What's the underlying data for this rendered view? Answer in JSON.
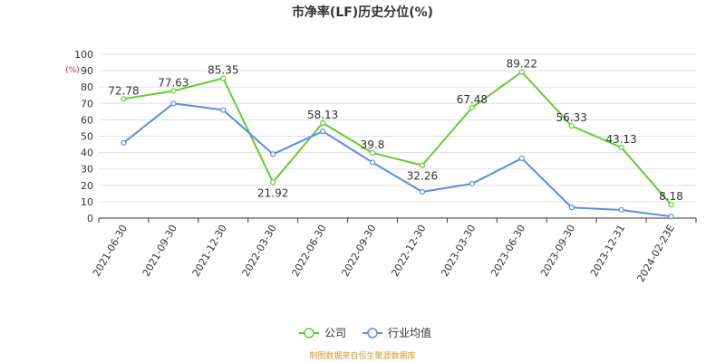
{
  "chart_data": {
    "type": "line",
    "title": "市净率(LF)历史分位(%)",
    "y_unit": "(%)",
    "ylim": [
      0,
      100
    ],
    "y_ticks": [
      0,
      10,
      20,
      30,
      40,
      50,
      60,
      70,
      80,
      90,
      100
    ],
    "categories": [
      "2021-06-30",
      "2021-09-30",
      "2021-12-30",
      "2022-03-30",
      "2022-06-30",
      "2022-09-30",
      "2022-12-30",
      "2023-03-30",
      "2023-06-30",
      "2023-09-30",
      "2023-12-31",
      "2024-02-23E"
    ],
    "series": [
      {
        "name": "公司",
        "color": "#66cc33",
        "values": [
          72.78,
          77.63,
          85.35,
          21.92,
          58.13,
          39.8,
          32.26,
          67.48,
          89.22,
          56.33,
          43.13,
          8.18
        ],
        "labels": [
          "72.78",
          "77.63",
          "85.35",
          "21.92",
          "58.13",
          "39.8",
          "32.26",
          "67.48",
          "89.22",
          "56.33",
          "43.13",
          "8.18"
        ]
      },
      {
        "name": "行业均值",
        "color": "#5b8fe0",
        "values": [
          46,
          70,
          66,
          39,
          53,
          34,
          16,
          21,
          36.5,
          6.5,
          5,
          1
        ]
      }
    ],
    "grid": true,
    "legend_position": "bottom-center"
  },
  "footer": {
    "source": "制图数据来自恒生聚源数据库"
  }
}
